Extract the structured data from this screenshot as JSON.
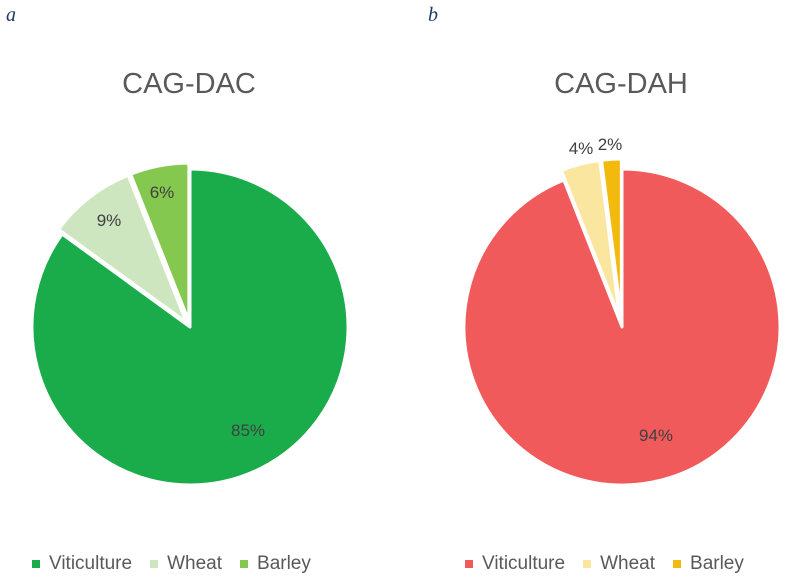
{
  "chart_data": [
    {
      "type": "pie",
      "panel": "a",
      "title": "CAG-DAC",
      "slices": [
        {
          "label": "Viticulture",
          "value": 85,
          "display": "85%",
          "color": "#1aab4b"
        },
        {
          "label": "Wheat",
          "value": 9,
          "display": "9%",
          "color": "#cde6c0"
        },
        {
          "label": "Barley",
          "value": 6,
          "display": "6%",
          "color": "#84c850"
        }
      ],
      "legend_position": "bottom"
    },
    {
      "type": "pie",
      "panel": "b",
      "title": "CAG-DAH",
      "slices": [
        {
          "label": "Viticulture",
          "value": 94,
          "display": "94%",
          "color": "#f05a5a"
        },
        {
          "label": "Wheat",
          "value": 4,
          "display": "4%",
          "color": "#fbe6a0"
        },
        {
          "label": "Barley",
          "value": 2,
          "display": "2%",
          "color": "#f2b90f"
        }
      ],
      "legend_position": "bottom"
    }
  ]
}
